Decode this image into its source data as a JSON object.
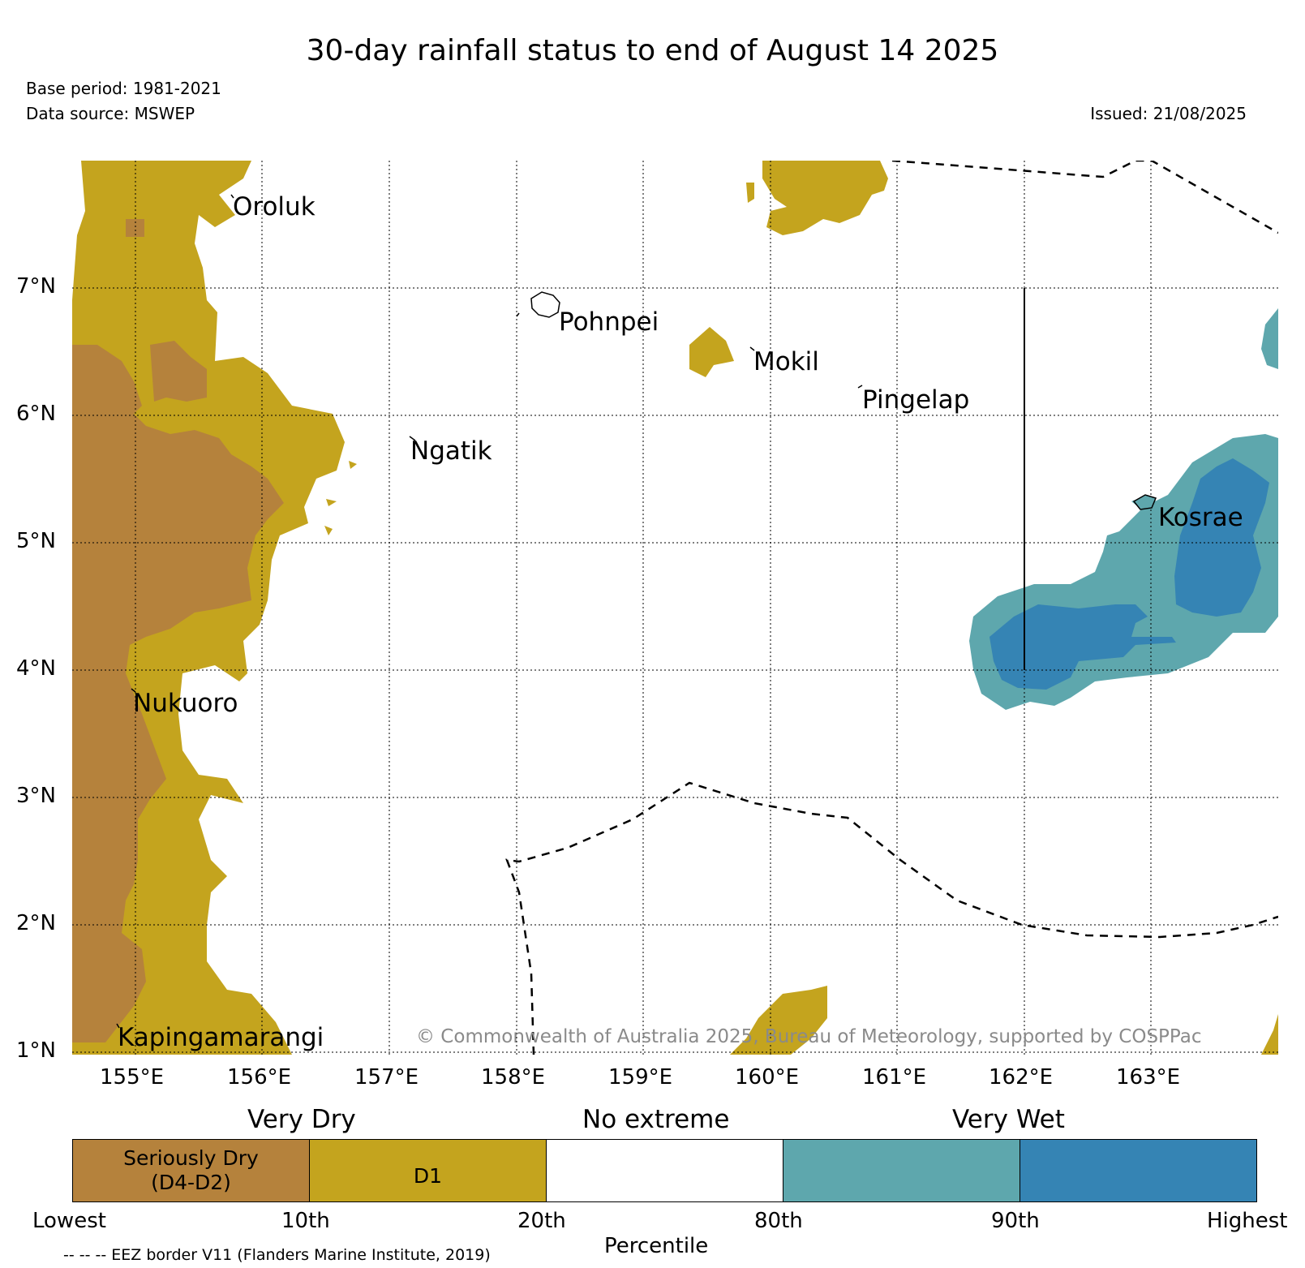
{
  "title": "30-day rainfall status to end of August 14 2025",
  "base_period": "Base period: 1981-2021",
  "data_source": "Data source: MSWEP",
  "issued": "Issued: 21/08/2025",
  "map": {
    "lon_range": [
      154.5,
      164.0
    ],
    "lat_range": [
      1.0,
      8.0
    ],
    "lon_ticks": [
      "155°E",
      "156°E",
      "157°E",
      "158°E",
      "159°E",
      "160°E",
      "161°E",
      "162°E",
      "163°E"
    ],
    "lat_ticks": [
      "7°N",
      "6°N",
      "5°N",
      "4°N",
      "3°N",
      "2°N",
      "1°N"
    ],
    "places": [
      {
        "name": "Oroluk",
        "lon": 155.6,
        "lat": 7.6
      },
      {
        "name": "Pohnpei",
        "lon": 158.2,
        "lat": 6.8
      },
      {
        "name": "Mokil",
        "lon": 159.8,
        "lat": 6.7
      },
      {
        "name": "Pingelap",
        "lon": 160.7,
        "lat": 6.2
      },
      {
        "name": "Ngatik",
        "lon": 157.2,
        "lat": 5.8
      },
      {
        "name": "Kosrae",
        "lon": 163.0,
        "lat": 5.3
      },
      {
        "name": "Nukuoro",
        "lon": 155.0,
        "lat": 3.9
      },
      {
        "name": "Kapingamarangi",
        "lon": 154.8,
        "lat": 1.1
      }
    ],
    "copyright": "© Commonwealth of Australia 2025, Bureau of Meteorology, supported by COSPPac"
  },
  "colors": {
    "seriously_dry": "#b5823c",
    "d1": "#c4a41e",
    "no_extreme": "#ffffff",
    "very_wet_80": "#5ea7ad",
    "very_wet_90": "#3584b4"
  },
  "legend": {
    "groups": [
      "Very Dry",
      "No extreme",
      "Very Wet"
    ],
    "boxes": [
      {
        "label": "Seriously Dry (D4-D2)",
        "line1": "Seriously Dry",
        "line2": "(D4-D2)",
        "color": "#b5823c"
      },
      {
        "label": "D1",
        "line1": "D1",
        "line2": "",
        "color": "#c4a41e"
      },
      {
        "label": "",
        "line1": "",
        "line2": "",
        "color": "#ffffff"
      },
      {
        "label": "",
        "line1": "",
        "line2": "",
        "color": "#5ea7ad"
      },
      {
        "label": "",
        "line1": "",
        "line2": "",
        "color": "#3584b4"
      }
    ],
    "percentiles": [
      "Lowest",
      "10th",
      "20th",
      "80th",
      "90th",
      "Highest"
    ],
    "axis_label": "Percentile"
  },
  "eez_note": "-- -- -- EEZ border V11 (Flanders Marine Institute, 2019)"
}
